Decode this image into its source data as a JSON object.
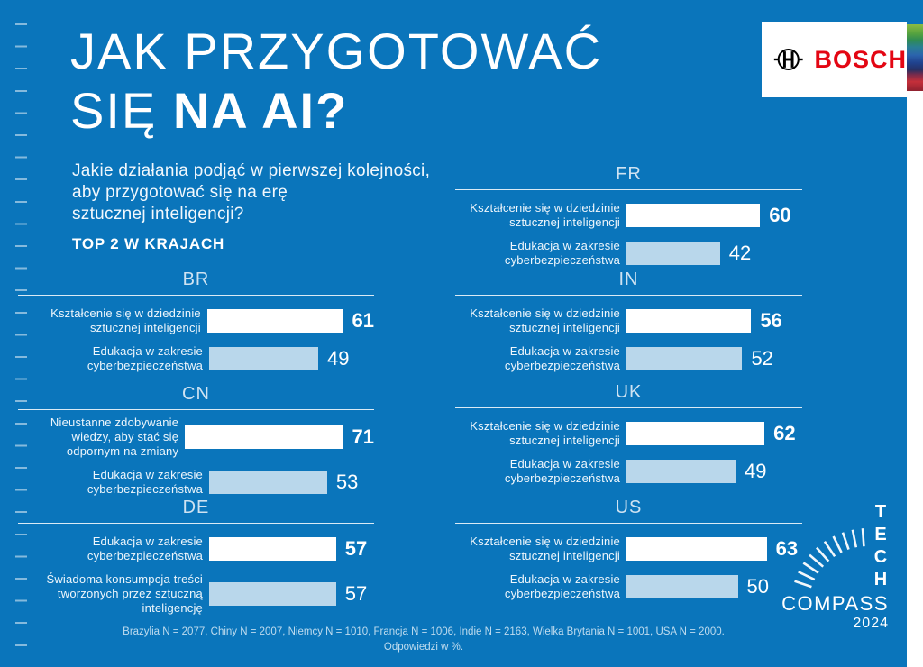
{
  "colors": {
    "bg": "#0a75bb",
    "bar_primary": "#ffffff",
    "bar_secondary": "#b9d7eb",
    "bosch_red": "#e30613"
  },
  "header": {
    "title_line1": "JAK PRZYGOTOWAĆ",
    "title_line2_light": "SIĘ ",
    "title_line2_bold": "NA AI?",
    "subtitle_lines": [
      "Jakie działania podjąć w pierwszej kolejności,",
      "aby przygotować się na erę",
      "sztucznej inteligencji?"
    ],
    "section_label": "TOP 2 W KRAJACH"
  },
  "branding": {
    "bosch_label": "BOSCH",
    "tech_letters": [
      "T",
      "E",
      "C",
      "H"
    ],
    "compass_label": "COMPASS",
    "year": "2024"
  },
  "footer": {
    "line1": "Brazylia N = 2077, Chiny N = 2007, Niemcy N = 1010, Francja N = 1006, Indie N = 2163, Wielka Brytania N = 1001, USA N = 2000.",
    "line2": "Odpowiedzi w %."
  },
  "chart_data": {
    "type": "bar",
    "orientation": "horizontal",
    "unit": "%",
    "title": "JAK PRZYGOTOWAĆ SIĘ NA AI?",
    "subtitle": "Jakie działania podjąć w pierwszej kolejności, aby przygotować się na erę sztucznej inteligencji? TOP 2 W KRAJACH",
    "note": "Odpowiedzi w %.",
    "countries": [
      {
        "code": "BR",
        "answers": [
          {
            "label": "Kształcenie się w dziedzinie\nsztucznej inteligencji",
            "value": 61
          },
          {
            "label": "Edukacja w zakresie\ncyberbezpieczeństwa",
            "value": 49
          }
        ]
      },
      {
        "code": "CN",
        "answers": [
          {
            "label": "Nieustanne zdobywanie\nwiedzy, aby stać się\nodpornym na zmiany",
            "value": 71
          },
          {
            "label": "Edukacja w zakresie\ncyberbezpieczeństwa",
            "value": 53
          }
        ]
      },
      {
        "code": "DE",
        "answers": [
          {
            "label": "Edukacja w zakresie\ncyberbezpieczeństwa",
            "value": 57
          },
          {
            "label": "Świadoma konsumpcja treści\ntworzonych przez sztuczną\ninteligencję",
            "value": 57
          }
        ]
      },
      {
        "code": "FR",
        "answers": [
          {
            "label": "Kształcenie się w dziedzinie\nsztucznej inteligencji",
            "value": 60
          },
          {
            "label": "Edukacja w zakresie\ncyberbezpieczeństwa",
            "value": 42
          }
        ]
      },
      {
        "code": "IN",
        "answers": [
          {
            "label": "Kształcenie się w dziedzinie\nsztucznej inteligencji",
            "value": 56
          },
          {
            "label": "Edukacja w zakresie\ncyberbezpieczeństwa",
            "value": 52
          }
        ]
      },
      {
        "code": "UK",
        "answers": [
          {
            "label": "Kształcenie się w dziedzinie\nsztucznej inteligencji",
            "value": 62
          },
          {
            "label": "Edukacja w zakresie\ncyberbezpieczeństwa",
            "value": 49
          }
        ]
      },
      {
        "code": "US",
        "answers": [
          {
            "label": "Kształcenie się w dziedzinie\nsztucznej inteligencji",
            "value": 63
          },
          {
            "label": "Edukacja w zakresie\ncyberbezpieczeństwa",
            "value": 50
          }
        ]
      }
    ]
  }
}
